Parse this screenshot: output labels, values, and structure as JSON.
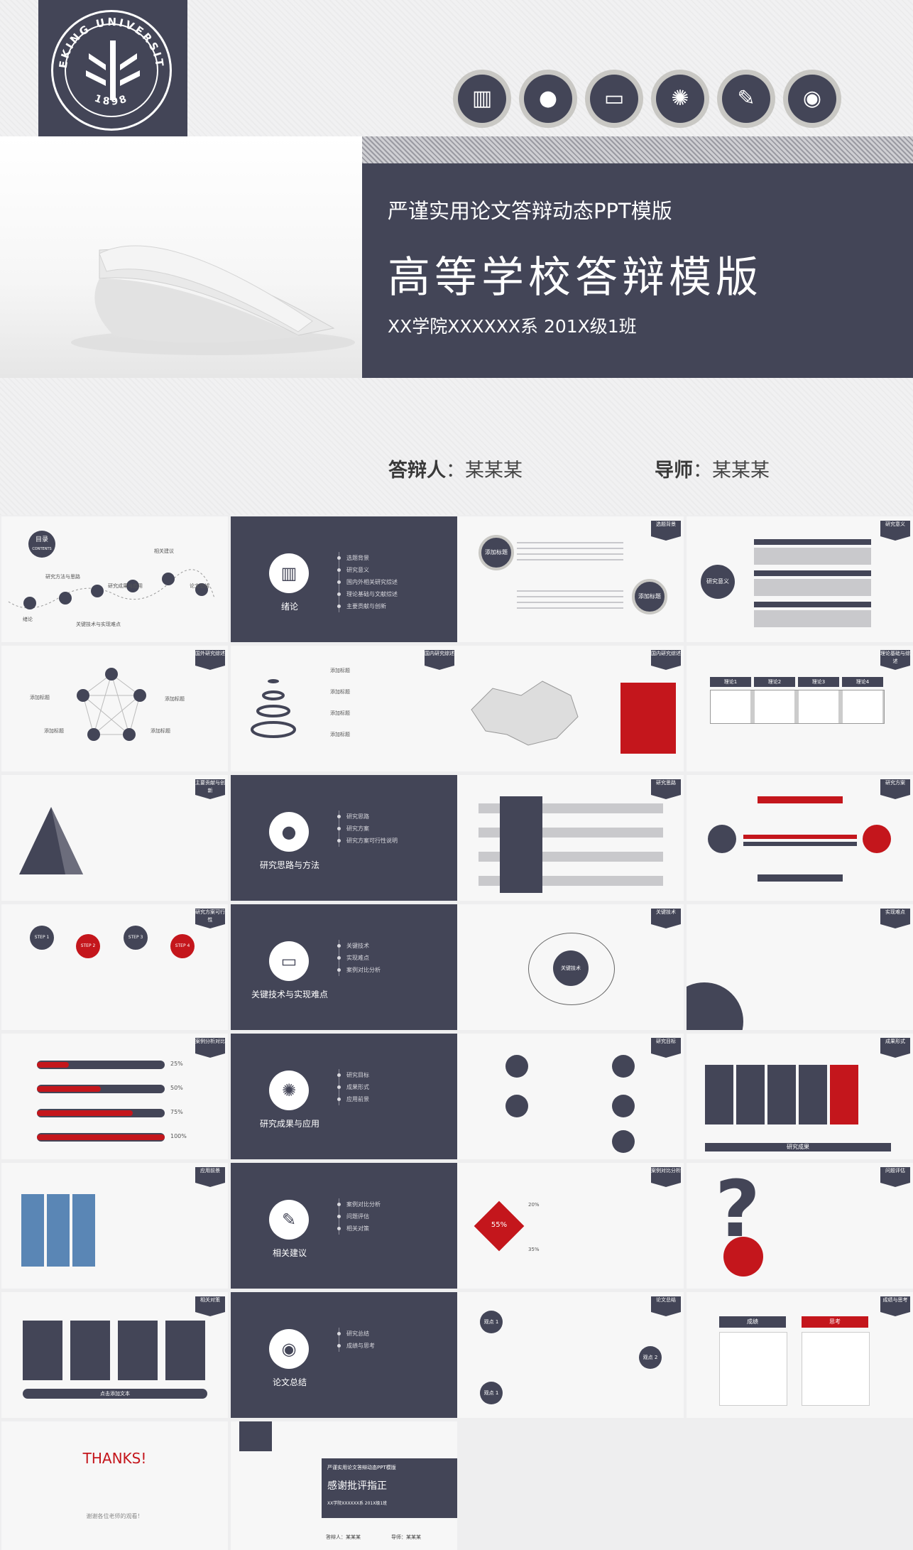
{
  "cover": {
    "logo_name": "PEKING UNIVERSITY",
    "logo_year": "1898",
    "subtitle": "严谨实用论文答辩动态PPT模版",
    "title": "高等学校答辩模版",
    "class_line": "XX学院XXXXXX系  201X级1班",
    "defender_label": "答辩人",
    "defender_name": "：某某某",
    "advisor_label": "导师",
    "advisor_name": "：某某某",
    "icons": [
      "books-icon",
      "apple-icon",
      "open-book-icon",
      "lightbulb-icon",
      "edit-icon",
      "globe-icon"
    ]
  },
  "thumbs": {
    "toc": {
      "title": "目录",
      "sub": "CONTENTS",
      "items": [
        "绪论",
        "研究方法与思路",
        "关键技术与实现难点",
        "研究成果与应用",
        "相关建议",
        "论文总结"
      ]
    },
    "sec1": {
      "title": "绪论",
      "items": [
        "选题背景",
        "研究意义",
        "国内外相关研究综述",
        "理论基础与文献综述",
        "主要贡献与创新"
      ]
    },
    "sec2": {
      "title": "研究思路与方法",
      "items": [
        "研究思路",
        "研究方案",
        "研究方案可行性说明"
      ]
    },
    "sec3": {
      "title": "关键技术与实现难点",
      "items": [
        "关键技术",
        "实现难点",
        "案例对比分析"
      ]
    },
    "sec4": {
      "title": "研究成果与应用",
      "items": [
        "研究目标",
        "成果形式",
        "应用前景"
      ]
    },
    "sec5": {
      "title": "相关建议",
      "items": [
        "案例对比分析",
        "问题评估",
        "相关对策"
      ]
    },
    "sec6": {
      "title": "论文总结",
      "items": [
        "研究总结",
        "成绩与思考"
      ]
    },
    "tags": {
      "t3": "选题背景",
      "t4": "研究意义",
      "t5": "国外研究综述",
      "t6": "国内研究综述",
      "t7": "国内研究综述",
      "t8": "理论基础与综述",
      "t9": "主要贡献与创新",
      "t11": "研究思路",
      "t12": "研究方案",
      "t13": "研究方案可行性",
      "t15": "关键技术",
      "t16": "实现难点",
      "t17": "案例分析对比",
      "t19": "研究目标",
      "t20": "成果形式",
      "t21": "应用前景",
      "t23": "案例对比分析",
      "t24": "问题评估",
      "t25": "相关对策",
      "t27": "论文总结",
      "t28": "成绩与思考"
    },
    "add_title": "添加标题",
    "steps": [
      "STEP 1",
      "STEP 2",
      "STEP 3",
      "STEP 4"
    ],
    "progress": [
      {
        "label": "25%",
        "value": 0.25
      },
      {
        "label": "50%",
        "value": 0.5
      },
      {
        "label": "75%",
        "value": 0.75
      },
      {
        "label": "100%",
        "value": 1.0
      }
    ],
    "core_words": [
      "研究意义",
      "关键技术",
      "观点 1",
      "观点 2",
      "研究成果",
      "点击添加文本",
      "55%",
      "20%",
      "35%",
      "成绩",
      "思考"
    ],
    "plans": [
      "理论1",
      "理论2",
      "理论3",
      "理论4"
    ],
    "thanks": "THANKS!",
    "thanks_sub": "谢谢各位老师的观看！",
    "mini_title": "感谢批评指正",
    "mini_sub": "严谨实用论文答辩动态PPT模版",
    "mini_class": "XX学院XXXXXX系  201X级1班",
    "mini_def": "答辩人：某某某",
    "mini_adv": "导师：某某某"
  },
  "colors": {
    "navy": "#434557",
    "red": "#c4161c",
    "light": "#f7f7f7"
  }
}
